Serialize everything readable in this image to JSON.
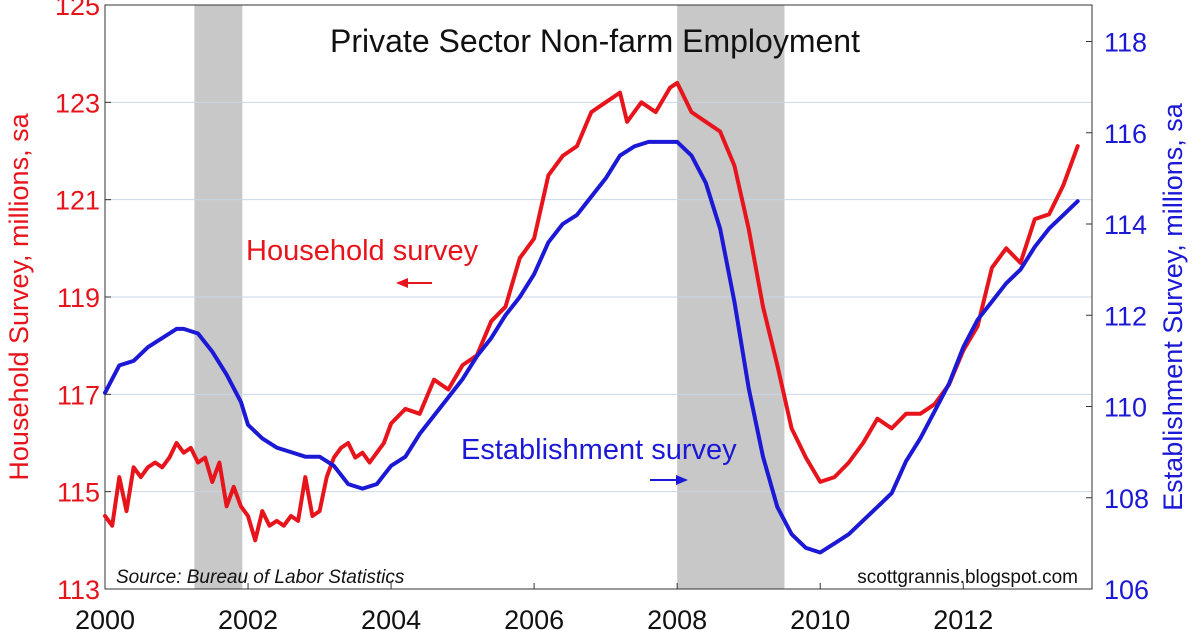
{
  "chart_data": {
    "type": "line",
    "title": "Private Sector Non-farm Employment",
    "ylabel_left": "Household Survey, millions, sa",
    "ylabel_right": "Establishment Survey, millions, sa",
    "source": "Source:  Bureau of Labor Statistics",
    "watermark": "scottgrannis.blogspot.com",
    "xlim": [
      2000,
      2013.8
    ],
    "ylim_left": [
      113,
      125
    ],
    "ylim_right": [
      106,
      118.8
    ],
    "x_ticks": [
      2000,
      2002,
      2004,
      2006,
      2008,
      2010,
      2012
    ],
    "x_tick_labels": [
      "2000",
      "2002",
      "2004",
      "2006",
      "2008",
      "2010",
      "2012"
    ],
    "y_left_ticks": [
      113,
      115,
      117,
      119,
      121,
      123,
      125
    ],
    "y_left_tick_labels": [
      "113",
      "115",
      "117",
      "119",
      "121",
      "123",
      "125"
    ],
    "y_right_ticks": [
      106,
      108,
      110,
      112,
      114,
      116,
      118
    ],
    "y_right_tick_labels": [
      "106",
      "108",
      "110",
      "112",
      "114",
      "116",
      "118"
    ],
    "recessions": [
      [
        2001.25,
        2001.92
      ],
      [
        2008.0,
        2009.5
      ]
    ],
    "annotations": [
      {
        "text": "Household survey",
        "arrow": "left"
      },
      {
        "text": "Establishment survey",
        "arrow": "right"
      }
    ],
    "grid": true,
    "colors": {
      "household": "#e8141b",
      "establishment": "#1b18d6",
      "recession": "#c8c8c8",
      "grid": "#c9d6e8"
    },
    "series": [
      {
        "name": "Household survey",
        "axis": "left",
        "x": [
          2000.0,
          2000.1,
          2000.2,
          2000.3,
          2000.4,
          2000.5,
          2000.6,
          2000.7,
          2000.8,
          2000.9,
          2001.0,
          2001.1,
          2001.2,
          2001.3,
          2001.4,
          2001.5,
          2001.6,
          2001.7,
          2001.8,
          2001.9,
          2002.0,
          2002.1,
          2002.2,
          2002.3,
          2002.4,
          2002.5,
          2002.6,
          2002.7,
          2002.8,
          2002.9,
          2003.0,
          2003.1,
          2003.2,
          2003.3,
          2003.4,
          2003.5,
          2003.6,
          2003.7,
          2003.8,
          2003.9,
          2004.0,
          2004.2,
          2004.4,
          2004.6,
          2004.8,
          2005.0,
          2005.2,
          2005.4,
          2005.6,
          2005.8,
          2006.0,
          2006.2,
          2006.4,
          2006.6,
          2006.8,
          2007.0,
          2007.2,
          2007.3,
          2007.5,
          2007.7,
          2007.9,
          2008.0,
          2008.2,
          2008.4,
          2008.6,
          2008.8,
          2009.0,
          2009.2,
          2009.4,
          2009.6,
          2009.8,
          2010.0,
          2010.2,
          2010.4,
          2010.6,
          2010.8,
          2011.0,
          2011.2,
          2011.4,
          2011.6,
          2011.8,
          2012.0,
          2012.2,
          2012.4,
          2012.6,
          2012.8,
          2013.0,
          2013.2,
          2013.4,
          2013.6
        ],
        "values": [
          114.5,
          114.3,
          115.3,
          114.6,
          115.5,
          115.3,
          115.5,
          115.6,
          115.5,
          115.7,
          116.0,
          115.8,
          115.9,
          115.6,
          115.7,
          115.2,
          115.6,
          114.7,
          115.1,
          114.7,
          114.5,
          114.0,
          114.6,
          114.3,
          114.4,
          114.3,
          114.5,
          114.4,
          115.3,
          114.5,
          114.6,
          115.3,
          115.7,
          115.9,
          116.0,
          115.7,
          115.8,
          115.6,
          115.8,
          116.0,
          116.4,
          116.7,
          116.6,
          117.3,
          117.1,
          117.6,
          117.8,
          118.5,
          118.8,
          119.8,
          120.2,
          121.5,
          121.9,
          122.1,
          122.8,
          123.0,
          123.2,
          122.6,
          123.0,
          122.8,
          123.3,
          123.4,
          122.8,
          122.6,
          122.4,
          121.7,
          120.4,
          118.8,
          117.6,
          116.3,
          115.7,
          115.2,
          115.3,
          115.6,
          116.0,
          116.5,
          116.3,
          116.6,
          116.6,
          116.8,
          117.2,
          117.9,
          118.4,
          119.6,
          120.0,
          119.7,
          120.6,
          120.7,
          121.3,
          122.1
        ]
      },
      {
        "name": "Establishment survey",
        "axis": "right",
        "x": [
          2000.0,
          2000.2,
          2000.4,
          2000.6,
          2000.8,
          2001.0,
          2001.1,
          2001.3,
          2001.5,
          2001.7,
          2001.9,
          2002.0,
          2002.2,
          2002.4,
          2002.6,
          2002.8,
          2003.0,
          2003.2,
          2003.4,
          2003.6,
          2003.8,
          2004.0,
          2004.2,
          2004.4,
          2004.6,
          2004.8,
          2005.0,
          2005.2,
          2005.4,
          2005.6,
          2005.8,
          2006.0,
          2006.2,
          2006.4,
          2006.6,
          2006.8,
          2007.0,
          2007.2,
          2007.4,
          2007.6,
          2007.8,
          2008.0,
          2008.2,
          2008.4,
          2008.6,
          2008.8,
          2009.0,
          2009.2,
          2009.4,
          2009.6,
          2009.8,
          2010.0,
          2010.2,
          2010.4,
          2010.6,
          2010.8,
          2011.0,
          2011.2,
          2011.4,
          2011.6,
          2011.8,
          2012.0,
          2012.2,
          2012.4,
          2012.6,
          2012.8,
          2013.0,
          2013.2,
          2013.4,
          2013.6
        ],
        "values": [
          110.3,
          110.9,
          111.0,
          111.3,
          111.5,
          111.7,
          111.7,
          111.6,
          111.2,
          110.7,
          110.1,
          109.6,
          109.3,
          109.1,
          109.0,
          108.9,
          108.9,
          108.7,
          108.3,
          108.2,
          108.3,
          108.7,
          108.9,
          109.4,
          109.8,
          110.2,
          110.6,
          111.1,
          111.5,
          112.0,
          112.4,
          112.9,
          113.6,
          114.0,
          114.2,
          114.6,
          115.0,
          115.5,
          115.7,
          115.8,
          115.8,
          115.8,
          115.5,
          114.9,
          113.9,
          112.3,
          110.4,
          108.9,
          107.8,
          107.2,
          106.9,
          106.8,
          107.0,
          107.2,
          107.5,
          107.8,
          108.1,
          108.8,
          109.3,
          109.9,
          110.5,
          111.3,
          111.9,
          112.3,
          112.7,
          113.0,
          113.5,
          113.9,
          114.2,
          114.5
        ]
      }
    ]
  }
}
